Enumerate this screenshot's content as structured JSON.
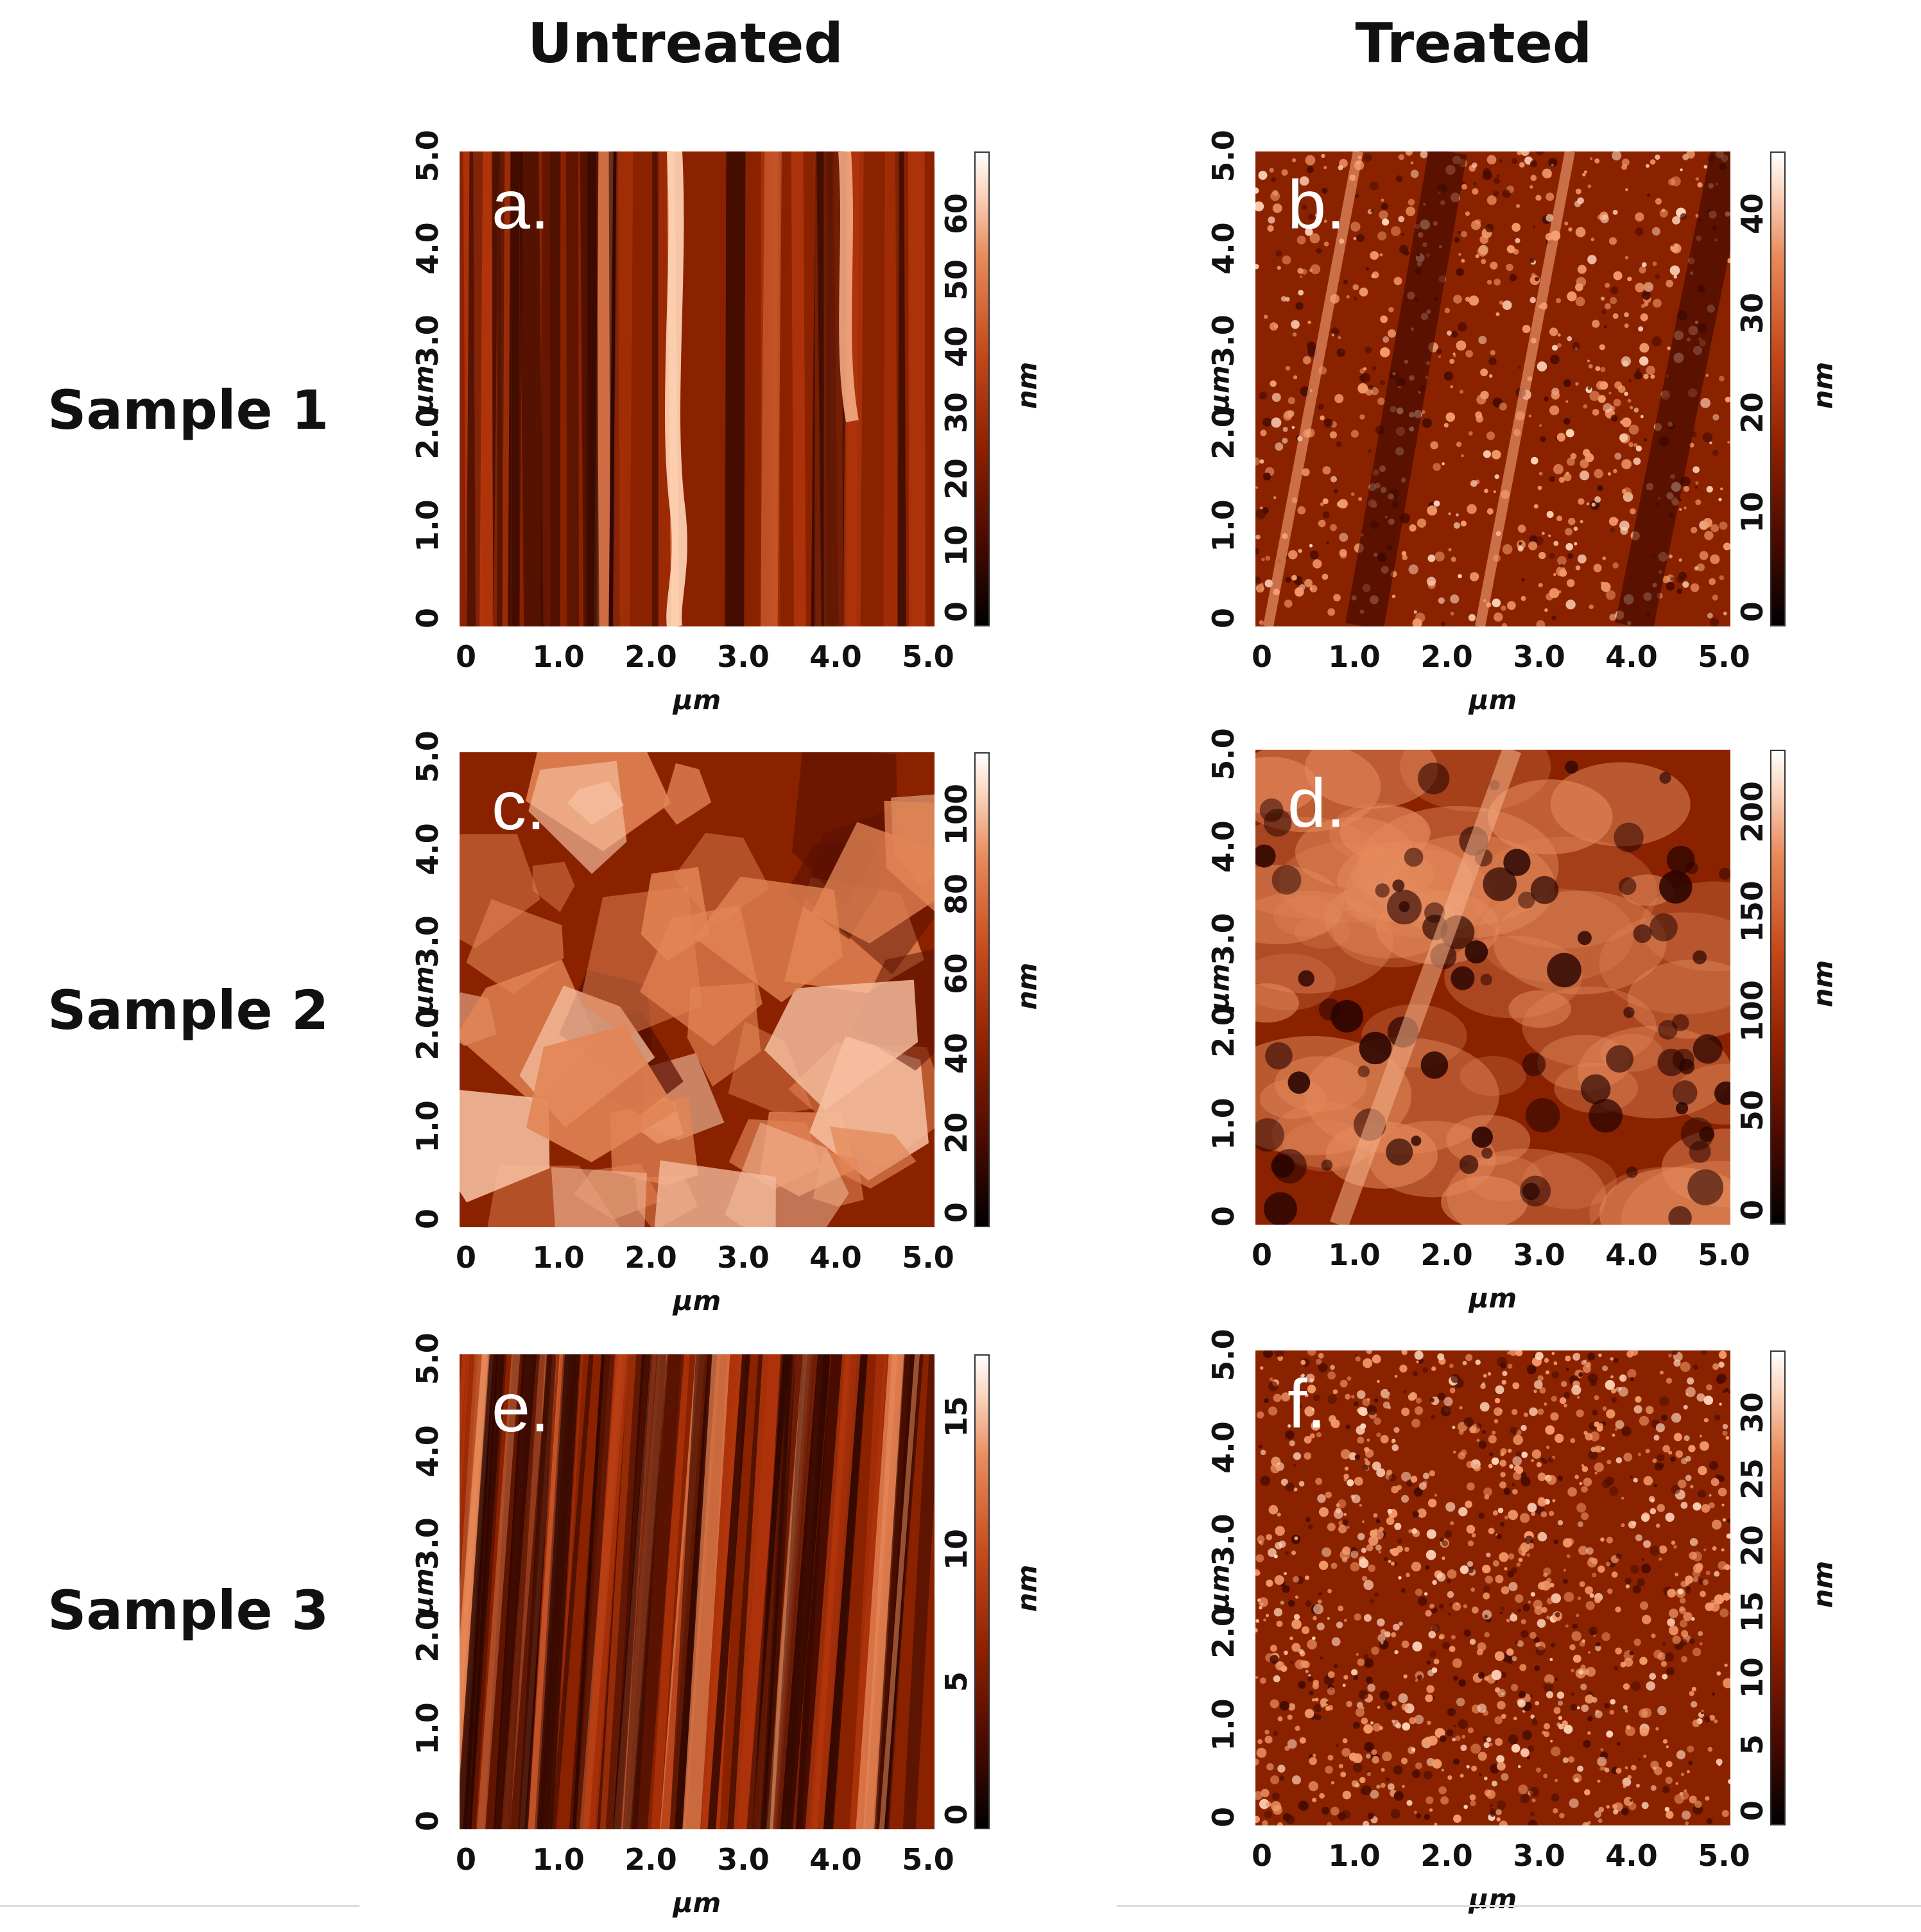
{
  "columns": {
    "untreated": "Untreated",
    "treated": "Treated"
  },
  "rows": [
    "Sample 1",
    "Sample 2",
    "Sample 3"
  ],
  "axis_unit_label": "μm",
  "x_ticks": [
    "0",
    "1.0",
    "2.0",
    "3.0",
    "4.0",
    "5.0"
  ],
  "y_ticks": [
    "0",
    "1.0",
    "2.0",
    "3.0",
    "4.0",
    "5.0"
  ],
  "colorbar_unit": "nm",
  "panels": [
    {
      "label": "a.",
      "colorbar_ticks": [
        "0",
        "10",
        "20",
        "30",
        "40",
        "50",
        "60"
      ],
      "texture": "vertical-streaks"
    },
    {
      "label": "b.",
      "colorbar_ticks": [
        "0",
        "10",
        "20",
        "30",
        "40"
      ],
      "texture": "diagonal-granular"
    },
    {
      "label": "c.",
      "colorbar_ticks": [
        "0",
        "20",
        "40",
        "60",
        "80",
        "100"
      ],
      "texture": "flakes"
    },
    {
      "label": "d.",
      "colorbar_ticks": [
        "0",
        "50",
        "100",
        "150",
        "200"
      ],
      "texture": "porous"
    },
    {
      "label": "e.",
      "colorbar_ticks": [
        "0",
        "5",
        "10",
        "15"
      ],
      "texture": "fine-streaks"
    },
    {
      "label": "f.",
      "colorbar_ticks": [
        "0",
        "5",
        "10",
        "15",
        "20",
        "25",
        "30"
      ],
      "texture": "dense-granular"
    }
  ],
  "colors": {
    "afm_dark": "#1a0300",
    "afm_mid": "#a02a05",
    "afm_light": "#f6a47a",
    "afm_highlight": "#ffe4d2"
  }
}
